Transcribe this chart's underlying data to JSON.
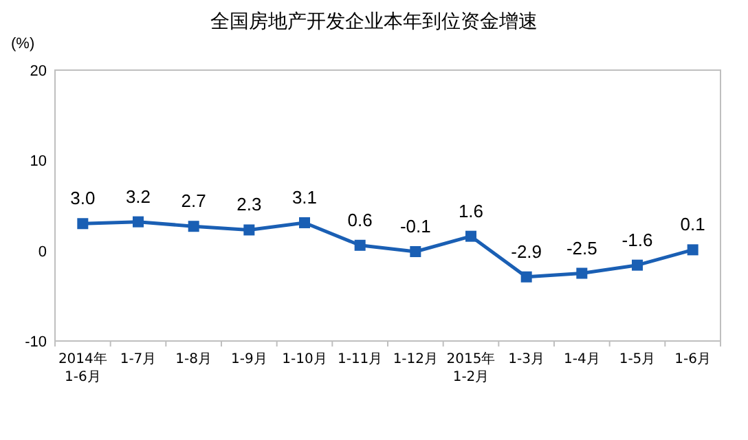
{
  "chart_data": {
    "type": "line",
    "title": "全国房地产开发企业本年到位资金增速",
    "ylabel": "(%)",
    "categories": [
      "2014年\n1-6月",
      "1-7月",
      "1-8月",
      "1-9月",
      "1-10月",
      "1-11月",
      "1-12月",
      "2015年\n1-2月",
      "1-3月",
      "1-4月",
      "1-5月",
      "1-6月"
    ],
    "series": [
      {
        "color": "#1a5fb4",
        "values": [
          3.0,
          3.2,
          2.7,
          2.3,
          3.1,
          0.6,
          -0.1,
          1.6,
          -2.9,
          -2.5,
          -1.6,
          0.1
        ],
        "value_labels": [
          "3.0",
          "3.2",
          "2.7",
          "2.3",
          "3.1",
          "0.6",
          "-0.1",
          "1.6",
          "-2.9",
          "-2.5",
          "-1.6",
          "0.1"
        ]
      }
    ],
    "ylim": [
      -10,
      20
    ],
    "yticks": [
      -10,
      0,
      10,
      20
    ],
    "marker": "square",
    "line_style": "solid"
  }
}
